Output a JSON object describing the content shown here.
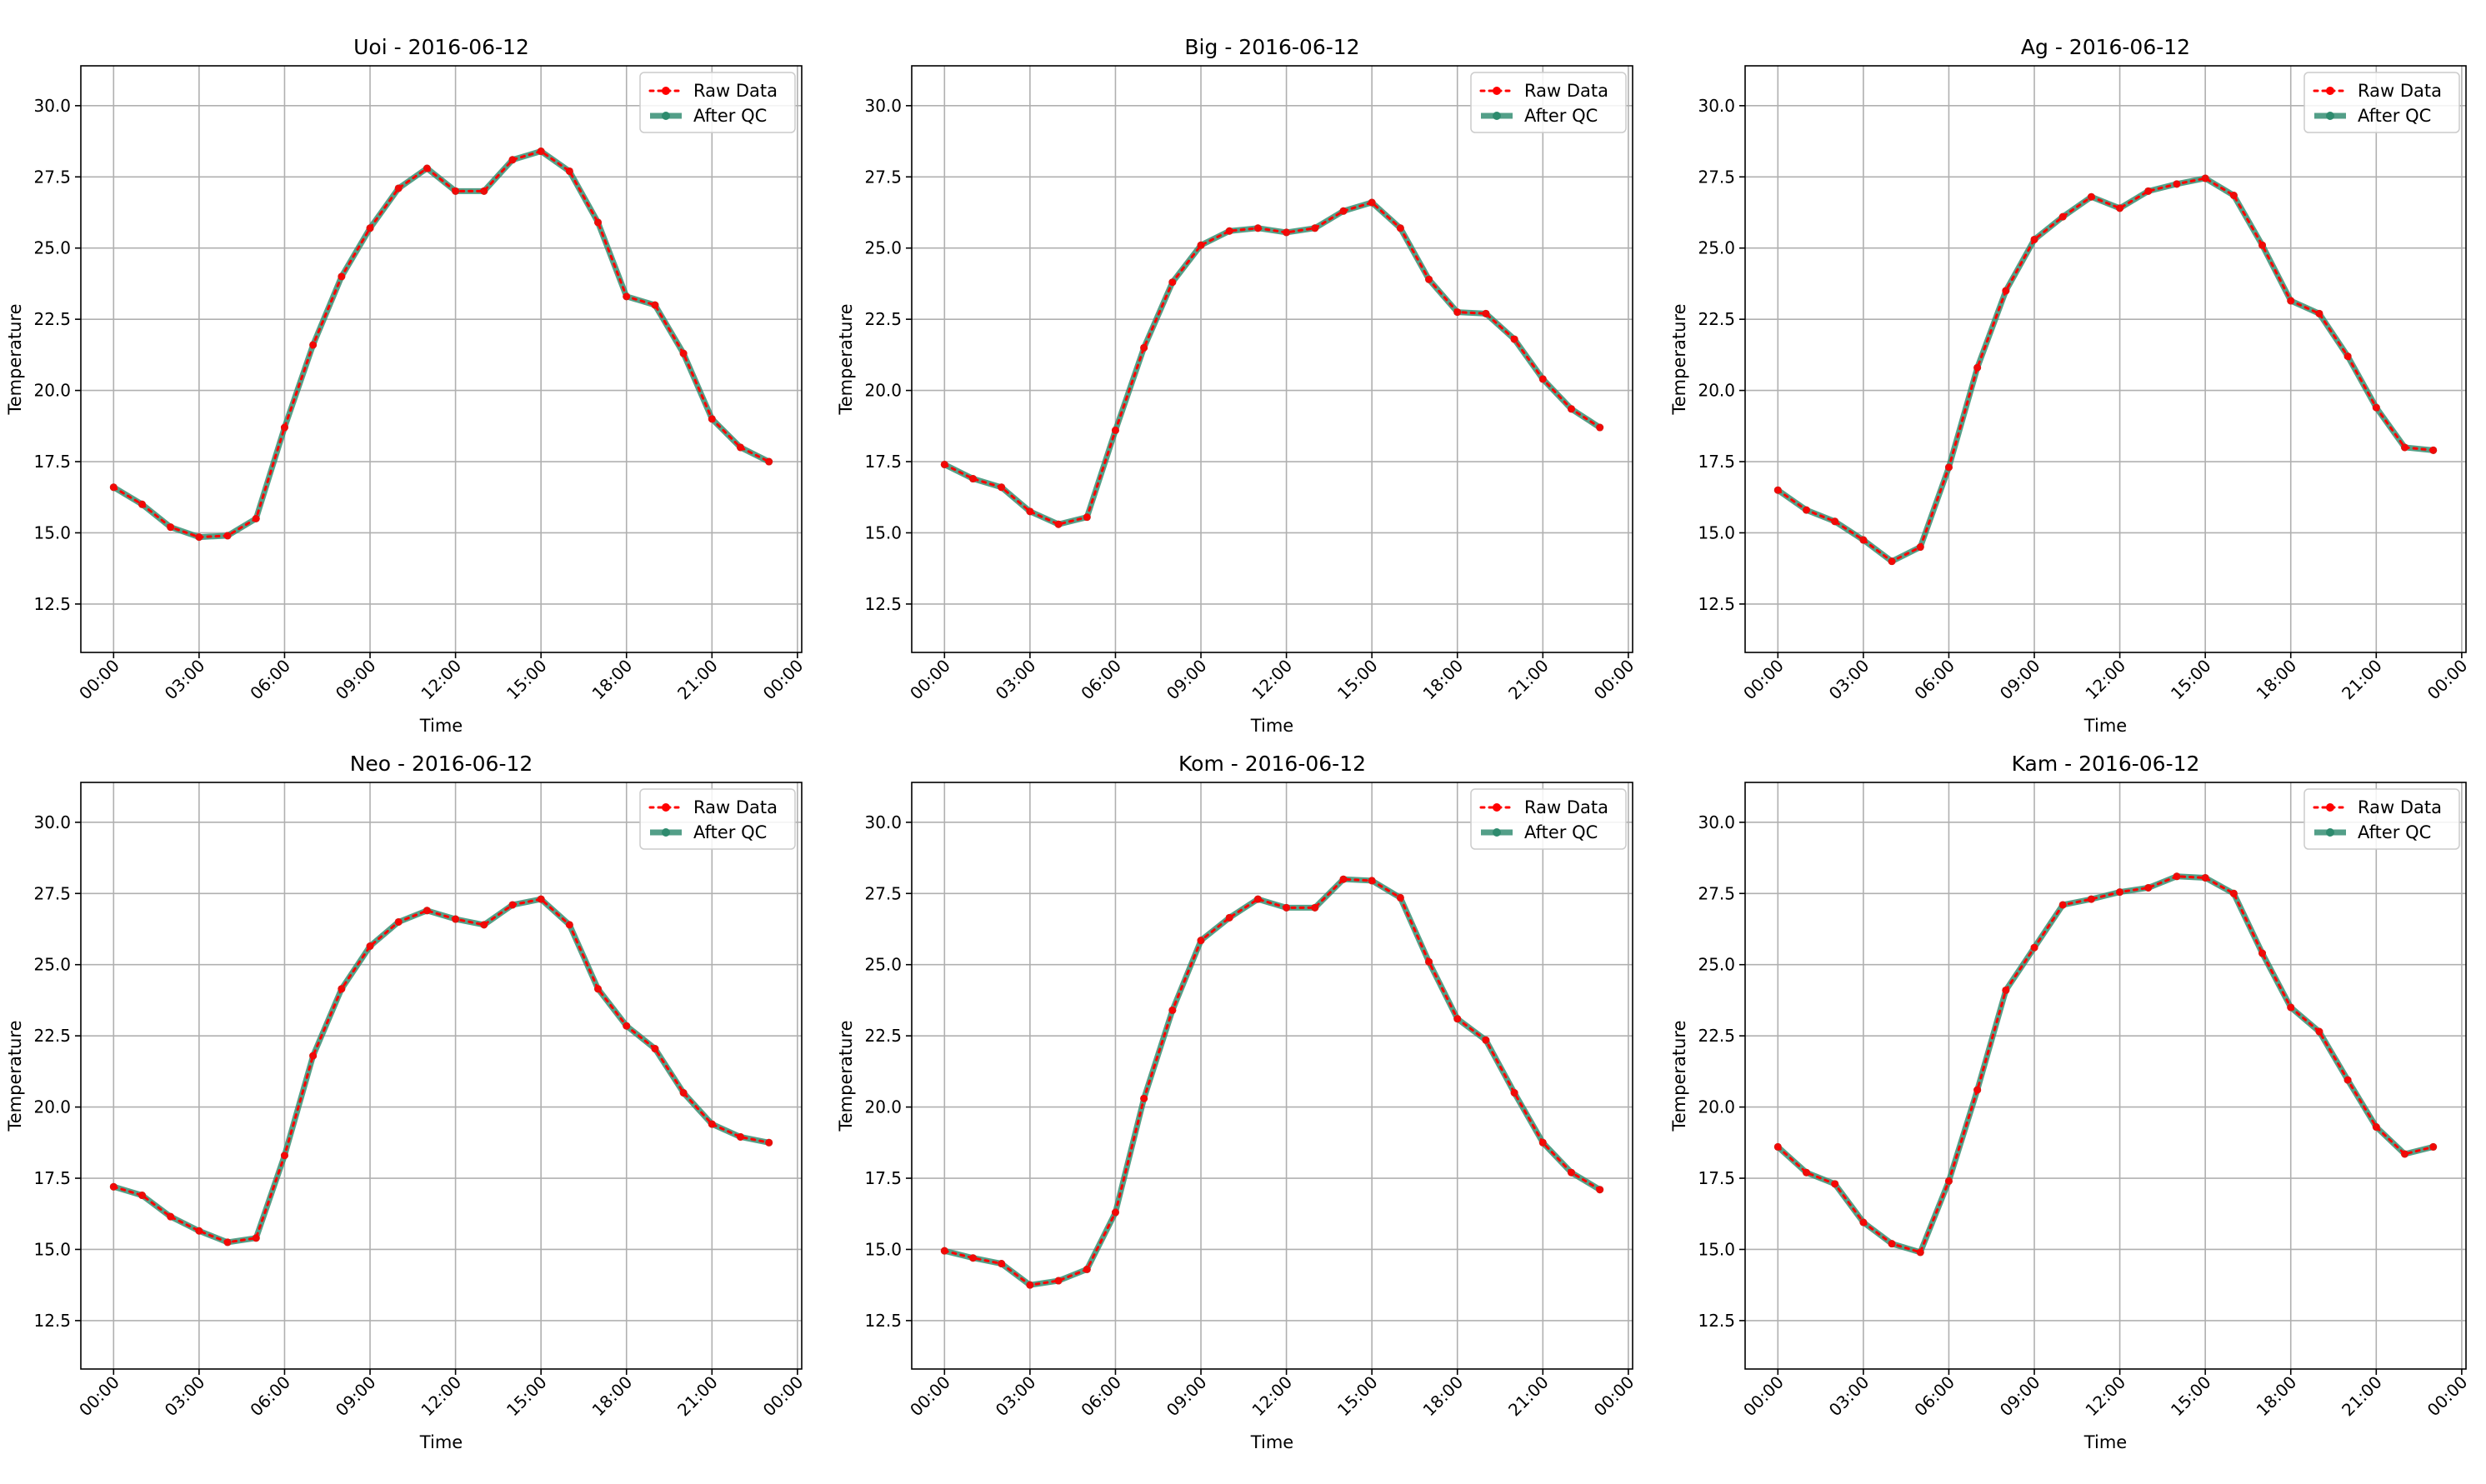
{
  "figure": {
    "raw_color": "#ff0000",
    "qc_color": "#2e8b6e",
    "legend_location": "upper right",
    "grid": true
  },
  "chart_data": [
    {
      "type": "line",
      "title": "Uoi - 2016-06-12",
      "xlabel": "Time",
      "ylabel": "Temperature",
      "xlim": [
        -1.15,
        24.15
      ],
      "ylim": [
        10.8,
        31.4
      ],
      "xticks": [
        0,
        3,
        6,
        9,
        12,
        15,
        18,
        21,
        24
      ],
      "xtick_labels": [
        "00:00",
        "03:00",
        "06:00",
        "09:00",
        "12:00",
        "15:00",
        "18:00",
        "21:00",
        "00:00"
      ],
      "yticks": [
        12.5,
        15.0,
        17.5,
        20.0,
        22.5,
        25.0,
        27.5,
        30.0
      ],
      "ytick_labels": [
        "12.5",
        "15.0",
        "17.5",
        "20.0",
        "22.5",
        "25.0",
        "27.5",
        "30.0"
      ],
      "legend": [
        "Raw Data",
        "After QC"
      ],
      "x": [
        "00:00",
        "01:00",
        "02:00",
        "03:00",
        "04:00",
        "05:00",
        "06:00",
        "07:00",
        "08:00",
        "09:00",
        "10:00",
        "11:00",
        "12:00",
        "13:00",
        "14:00",
        "15:00",
        "16:00",
        "17:00",
        "18:00",
        "19:00",
        "20:00",
        "21:00",
        "22:00",
        "23:00"
      ],
      "series": [
        {
          "name": "Raw Data",
          "values": [
            16.6,
            16.0,
            15.2,
            14.85,
            14.9,
            15.5,
            18.7,
            21.6,
            24.0,
            25.7,
            27.1,
            27.8,
            27.0,
            27.0,
            28.1,
            28.4,
            27.7,
            25.9,
            23.3,
            23.0,
            21.3,
            19.0,
            18.0,
            17.5
          ]
        },
        {
          "name": "After QC",
          "values": [
            16.6,
            16.0,
            15.2,
            14.85,
            14.9,
            15.5,
            18.7,
            21.6,
            24.0,
            25.7,
            27.1,
            27.8,
            27.0,
            27.0,
            28.1,
            28.4,
            27.7,
            25.9,
            23.3,
            23.0,
            21.3,
            19.0,
            18.0,
            17.5
          ]
        }
      ]
    },
    {
      "type": "line",
      "title": "Big - 2016-06-12",
      "xlabel": "Time",
      "ylabel": "Temperature",
      "xlim": [
        -1.15,
        24.15
      ],
      "ylim": [
        10.8,
        31.4
      ],
      "xticks": [
        0,
        3,
        6,
        9,
        12,
        15,
        18,
        21,
        24
      ],
      "xtick_labels": [
        "00:00",
        "03:00",
        "06:00",
        "09:00",
        "12:00",
        "15:00",
        "18:00",
        "21:00",
        "00:00"
      ],
      "yticks": [
        12.5,
        15.0,
        17.5,
        20.0,
        22.5,
        25.0,
        27.5,
        30.0
      ],
      "ytick_labels": [
        "12.5",
        "15.0",
        "17.5",
        "20.0",
        "22.5",
        "25.0",
        "27.5",
        "30.0"
      ],
      "legend": [
        "Raw Data",
        "After QC"
      ],
      "x": [
        "00:00",
        "01:00",
        "02:00",
        "03:00",
        "04:00",
        "05:00",
        "06:00",
        "07:00",
        "08:00",
        "09:00",
        "10:00",
        "11:00",
        "12:00",
        "13:00",
        "14:00",
        "15:00",
        "16:00",
        "17:00",
        "18:00",
        "19:00",
        "20:00",
        "21:00",
        "22:00",
        "23:00"
      ],
      "series": [
        {
          "name": "Raw Data",
          "values": [
            17.4,
            16.9,
            16.6,
            15.75,
            15.3,
            15.55,
            18.6,
            21.5,
            23.8,
            25.1,
            25.6,
            25.7,
            25.55,
            25.7,
            26.3,
            26.6,
            25.7,
            23.9,
            22.75,
            22.7,
            21.8,
            20.4,
            19.35,
            18.7
          ]
        },
        {
          "name": "After QC",
          "values": [
            17.4,
            16.9,
            16.6,
            15.75,
            15.3,
            15.55,
            18.6,
            21.5,
            23.8,
            25.1,
            25.6,
            25.7,
            25.55,
            25.7,
            26.3,
            26.6,
            25.7,
            23.9,
            22.75,
            22.7,
            21.8,
            20.4,
            19.35,
            18.7
          ]
        }
      ]
    },
    {
      "type": "line",
      "title": "Ag - 2016-06-12",
      "xlabel": "Time",
      "ylabel": "Temperature",
      "xlim": [
        -1.15,
        24.15
      ],
      "ylim": [
        10.8,
        31.4
      ],
      "xticks": [
        0,
        3,
        6,
        9,
        12,
        15,
        18,
        21,
        24
      ],
      "xtick_labels": [
        "00:00",
        "03:00",
        "06:00",
        "09:00",
        "12:00",
        "15:00",
        "18:00",
        "21:00",
        "00:00"
      ],
      "yticks": [
        12.5,
        15.0,
        17.5,
        20.0,
        22.5,
        25.0,
        27.5,
        30.0
      ],
      "ytick_labels": [
        "12.5",
        "15.0",
        "17.5",
        "20.0",
        "22.5",
        "25.0",
        "27.5",
        "30.0"
      ],
      "legend": [
        "Raw Data",
        "After QC"
      ],
      "x": [
        "00:00",
        "01:00",
        "02:00",
        "03:00",
        "04:00",
        "05:00",
        "06:00",
        "07:00",
        "08:00",
        "09:00",
        "10:00",
        "11:00",
        "12:00",
        "13:00",
        "14:00",
        "15:00",
        "16:00",
        "17:00",
        "18:00",
        "19:00",
        "20:00",
        "21:00",
        "22:00",
        "23:00"
      ],
      "series": [
        {
          "name": "Raw Data",
          "values": [
            16.5,
            15.8,
            15.4,
            14.75,
            14.0,
            14.5,
            17.3,
            20.8,
            23.5,
            25.3,
            26.1,
            26.8,
            26.4,
            27.0,
            27.25,
            27.45,
            26.85,
            25.1,
            23.15,
            22.7,
            21.2,
            19.4,
            18.0,
            17.9
          ]
        },
        {
          "name": "After QC",
          "values": [
            16.5,
            15.8,
            15.4,
            14.75,
            14.0,
            14.5,
            17.3,
            20.8,
            23.5,
            25.3,
            26.1,
            26.8,
            26.4,
            27.0,
            27.25,
            27.45,
            26.85,
            25.1,
            23.15,
            22.7,
            21.2,
            19.4,
            18.0,
            17.9
          ]
        }
      ]
    },
    {
      "type": "line",
      "title": "Neo - 2016-06-12",
      "xlabel": "Time",
      "ylabel": "Temperature",
      "xlim": [
        -1.15,
        24.15
      ],
      "ylim": [
        10.8,
        31.4
      ],
      "xticks": [
        0,
        3,
        6,
        9,
        12,
        15,
        18,
        21,
        24
      ],
      "xtick_labels": [
        "00:00",
        "03:00",
        "06:00",
        "09:00",
        "12:00",
        "15:00",
        "18:00",
        "21:00",
        "00:00"
      ],
      "yticks": [
        12.5,
        15.0,
        17.5,
        20.0,
        22.5,
        25.0,
        27.5,
        30.0
      ],
      "ytick_labels": [
        "12.5",
        "15.0",
        "17.5",
        "20.0",
        "22.5",
        "25.0",
        "27.5",
        "30.0"
      ],
      "legend": [
        "Raw Data",
        "After QC"
      ],
      "x": [
        "00:00",
        "01:00",
        "02:00",
        "03:00",
        "04:00",
        "05:00",
        "06:00",
        "07:00",
        "08:00",
        "09:00",
        "10:00",
        "11:00",
        "12:00",
        "13:00",
        "14:00",
        "15:00",
        "16:00",
        "17:00",
        "18:00",
        "19:00",
        "20:00",
        "21:00",
        "22:00",
        "23:00"
      ],
      "series": [
        {
          "name": "Raw Data",
          "values": [
            17.2,
            16.9,
            16.15,
            15.65,
            15.25,
            15.4,
            18.3,
            21.8,
            24.15,
            25.65,
            26.5,
            26.9,
            26.6,
            26.4,
            27.1,
            27.3,
            26.4,
            24.15,
            22.85,
            22.05,
            20.5,
            19.4,
            18.95,
            18.75
          ]
        },
        {
          "name": "After QC",
          "values": [
            17.2,
            16.9,
            16.15,
            15.65,
            15.25,
            15.4,
            18.3,
            21.8,
            24.15,
            25.65,
            26.5,
            26.9,
            26.6,
            26.4,
            27.1,
            27.3,
            26.4,
            24.15,
            22.85,
            22.05,
            20.5,
            19.4,
            18.95,
            18.75
          ]
        }
      ]
    },
    {
      "type": "line",
      "title": "Kom - 2016-06-12",
      "xlabel": "Time",
      "ylabel": "Temperature",
      "xlim": [
        -1.15,
        24.15
      ],
      "ylim": [
        10.8,
        31.4
      ],
      "xticks": [
        0,
        3,
        6,
        9,
        12,
        15,
        18,
        21,
        24
      ],
      "xtick_labels": [
        "00:00",
        "03:00",
        "06:00",
        "09:00",
        "12:00",
        "15:00",
        "18:00",
        "21:00",
        "00:00"
      ],
      "yticks": [
        12.5,
        15.0,
        17.5,
        20.0,
        22.5,
        25.0,
        27.5,
        30.0
      ],
      "ytick_labels": [
        "12.5",
        "15.0",
        "17.5",
        "20.0",
        "22.5",
        "25.0",
        "27.5",
        "30.0"
      ],
      "legend": [
        "Raw Data",
        "After QC"
      ],
      "x": [
        "00:00",
        "01:00",
        "02:00",
        "03:00",
        "04:00",
        "05:00",
        "06:00",
        "07:00",
        "08:00",
        "09:00",
        "10:00",
        "11:00",
        "12:00",
        "13:00",
        "14:00",
        "15:00",
        "16:00",
        "17:00",
        "18:00",
        "19:00",
        "20:00",
        "21:00",
        "22:00",
        "23:00"
      ],
      "series": [
        {
          "name": "Raw Data",
          "values": [
            14.95,
            14.7,
            14.5,
            13.75,
            13.9,
            14.3,
            16.3,
            20.3,
            23.4,
            25.85,
            26.65,
            27.3,
            27.0,
            27.0,
            28.0,
            27.95,
            27.35,
            25.1,
            23.1,
            22.35,
            20.5,
            18.75,
            17.7,
            17.1
          ]
        },
        {
          "name": "After QC",
          "values": [
            14.95,
            14.7,
            14.5,
            13.75,
            13.9,
            14.3,
            16.3,
            20.3,
            23.4,
            25.85,
            26.65,
            27.3,
            27.0,
            27.0,
            28.0,
            27.95,
            27.35,
            25.1,
            23.1,
            22.35,
            20.5,
            18.75,
            17.7,
            17.1
          ]
        }
      ]
    },
    {
      "type": "line",
      "title": "Kam - 2016-06-12",
      "xlabel": "Time",
      "ylabel": "Temperature",
      "xlim": [
        -1.15,
        24.15
      ],
      "ylim": [
        10.8,
        31.4
      ],
      "xticks": [
        0,
        3,
        6,
        9,
        12,
        15,
        18,
        21,
        24
      ],
      "xtick_labels": [
        "00:00",
        "03:00",
        "06:00",
        "09:00",
        "12:00",
        "15:00",
        "18:00",
        "21:00",
        "00:00"
      ],
      "yticks": [
        12.5,
        15.0,
        17.5,
        20.0,
        22.5,
        25.0,
        27.5,
        30.0
      ],
      "ytick_labels": [
        "12.5",
        "15.0",
        "17.5",
        "20.0",
        "22.5",
        "25.0",
        "27.5",
        "30.0"
      ],
      "legend": [
        "Raw Data",
        "After QC"
      ],
      "x": [
        "00:00",
        "01:00",
        "02:00",
        "03:00",
        "04:00",
        "05:00",
        "06:00",
        "07:00",
        "08:00",
        "09:00",
        "10:00",
        "11:00",
        "12:00",
        "13:00",
        "14:00",
        "15:00",
        "16:00",
        "17:00",
        "18:00",
        "19:00",
        "20:00",
        "21:00",
        "22:00",
        "23:00"
      ],
      "series": [
        {
          "name": "Raw Data",
          "values": [
            18.6,
            17.7,
            17.3,
            15.95,
            15.2,
            14.9,
            17.4,
            20.6,
            24.1,
            25.6,
            27.1,
            27.3,
            27.55,
            27.7,
            28.1,
            28.05,
            27.5,
            25.4,
            23.5,
            22.65,
            20.95,
            19.3,
            18.35,
            18.6
          ]
        },
        {
          "name": "After QC",
          "values": [
            18.6,
            17.7,
            17.3,
            15.95,
            15.2,
            14.9,
            17.4,
            20.6,
            24.1,
            25.6,
            27.1,
            27.3,
            27.55,
            27.7,
            28.1,
            28.05,
            27.5,
            25.4,
            23.5,
            22.65,
            20.95,
            19.3,
            18.35,
            18.6
          ]
        }
      ]
    }
  ]
}
